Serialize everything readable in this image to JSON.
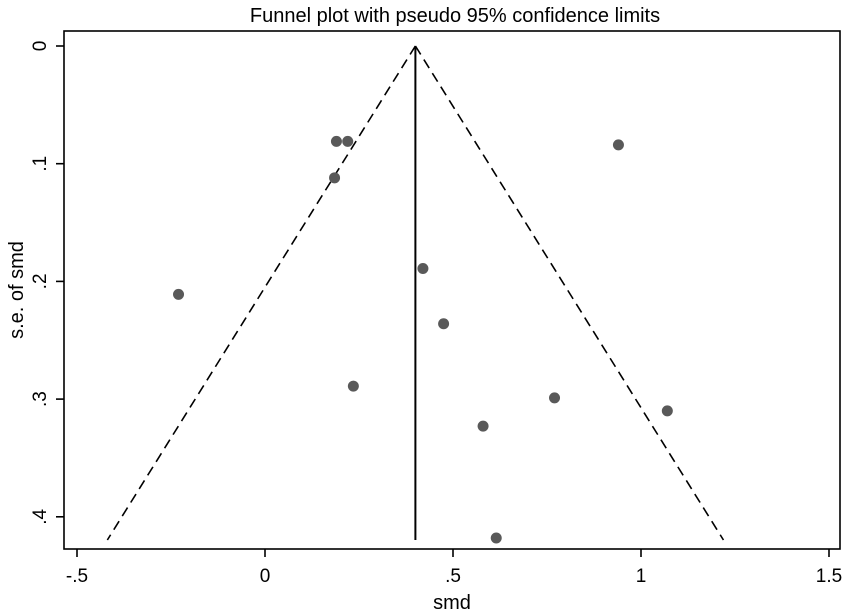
{
  "chart_data": {
    "type": "scatter",
    "title": "Funnel plot with pseudo 95% confidence limits",
    "xlabel": "smd",
    "ylabel": "s.e. of smd",
    "xlim": [
      -0.55,
      1.55
    ],
    "ylim": [
      0,
      0.43
    ],
    "y_reversed": true,
    "grid": false,
    "x_ticks": [
      -0.5,
      0,
      0.5,
      1,
      1.5
    ],
    "x_tick_labels": [
      "-.5",
      "0",
      ".5",
      "1",
      "1.5"
    ],
    "y_ticks": [
      0,
      0.1,
      0.2,
      0.3,
      0.4
    ],
    "y_tick_labels": [
      "0",
      ".1",
      ".2",
      ".3",
      ".4"
    ],
    "pooled_effect": 0.4,
    "confidence_limit_z": 1.96,
    "funnel_se_max": 0.418,
    "colors": {
      "points": "#595959",
      "lines": "#000000",
      "background": "#ffffff"
    },
    "points": [
      {
        "x": 0.19,
        "y": 0.081
      },
      {
        "x": 0.22,
        "y": 0.081
      },
      {
        "x": 0.94,
        "y": 0.084
      },
      {
        "x": 0.185,
        "y": 0.112
      },
      {
        "x": 0.42,
        "y": 0.189
      },
      {
        "x": -0.23,
        "y": 0.211
      },
      {
        "x": 0.475,
        "y": 0.236
      },
      {
        "x": 0.235,
        "y": 0.289
      },
      {
        "x": 0.77,
        "y": 0.299
      },
      {
        "x": 1.07,
        "y": 0.31
      },
      {
        "x": 0.58,
        "y": 0.323
      },
      {
        "x": 0.615,
        "y": 0.418
      }
    ]
  }
}
